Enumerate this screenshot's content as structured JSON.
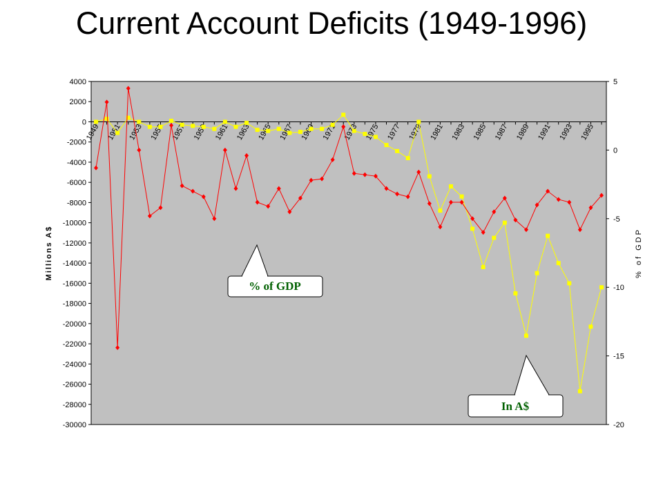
{
  "chart_data": {
    "type": "line",
    "title": "Current Account Deficits (1949-1996)",
    "y_label": "Millions A$",
    "y2_label": "% of GDP",
    "categories": [
      "1949",
      null,
      "1951",
      null,
      "1953",
      null,
      "1955",
      null,
      "1957",
      null,
      "1959",
      null,
      "1961",
      null,
      "1963",
      null,
      "1965",
      null,
      "1967",
      null,
      "1969",
      null,
      "1971",
      null,
      "1973",
      null,
      "1975",
      null,
      "1977",
      null,
      "1979",
      null,
      "1981",
      null,
      "1983",
      null,
      "1985",
      null,
      "1987",
      null,
      "1989",
      null,
      "1991",
      null,
      "1993",
      null,
      "1995",
      null
    ],
    "series": [
      {
        "name": "% of GDP",
        "color": "#ff0000",
        "marker": "diamond",
        "axis": "y2",
        "values": [
          -1.3,
          3.5,
          -14.4,
          4.5,
          0.0,
          -4.8,
          -4.2,
          1.8,
          -2.6,
          -3.0,
          -3.4,
          -5.0,
          0.0,
          -2.8,
          -0.4,
          -3.8,
          -4.1,
          -2.8,
          -4.5,
          -3.5,
          -2.2,
          -2.1,
          -0.7,
          1.7,
          -1.7,
          -1.8,
          -1.9,
          -2.8,
          -3.2,
          -3.4,
          -1.6,
          -3.9,
          -5.6,
          -3.8,
          -3.8,
          -5.0,
          -6.0,
          -4.5,
          -3.5,
          -5.1,
          -5.8,
          -4.0,
          -3.0,
          -3.6,
          -3.8,
          -5.8,
          -4.2,
          -3.3
        ]
      },
      {
        "name": "In A$",
        "color": "#ffff00",
        "marker": "square",
        "axis": "y",
        "values": [
          0,
          300,
          -1100,
          400,
          0,
          -500,
          -500,
          100,
          -300,
          -400,
          -500,
          -700,
          0,
          -500,
          -100,
          -800,
          -900,
          -700,
          -1100,
          -1000,
          -700,
          -700,
          -300,
          700,
          -900,
          -1200,
          -1500,
          -2300,
          -2900,
          -3600,
          0,
          -5400,
          -8800,
          -6400,
          -7400,
          -10600,
          -14400,
          -11500,
          -10000,
          -17000,
          -21200,
          -15000,
          -11300,
          -14000,
          -16000,
          -26700,
          -20300,
          -16400
        ]
      }
    ],
    "ylim": [
      -30000,
      4000
    ],
    "yticks": [
      4000,
      2000,
      0,
      -2000,
      -4000,
      -6000,
      -8000,
      -10000,
      -12000,
      -14000,
      -16000,
      -18000,
      -20000,
      -22000,
      -24000,
      -26000,
      -28000,
      -30000
    ],
    "y2lim": [
      -20,
      5
    ],
    "y2ticks": [
      5,
      0,
      -5,
      -10,
      -15,
      -20
    ],
    "plot_background": "#c0c0c0"
  }
}
